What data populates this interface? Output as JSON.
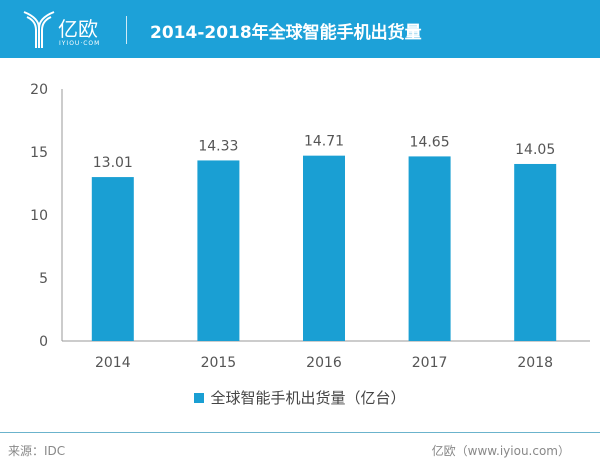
{
  "header": {
    "logo_text": "亿欧",
    "logo_sub": "IYIOU·COM",
    "title": "2014-2018年全球智能手机出货量"
  },
  "chart_data": {
    "type": "bar",
    "title": "2014-2018年全球智能手机出货量",
    "categories": [
      "2014",
      "2015",
      "2016",
      "2017",
      "2018"
    ],
    "series": [
      {
        "name": "全球智能手机出货量（亿台）",
        "values": [
          13.01,
          14.33,
          14.71,
          14.65,
          14.05
        ]
      }
    ],
    "data_labels": [
      "13.01",
      "14.33",
      "14.71",
      "14.65",
      "14.05"
    ],
    "ylim": [
      0,
      20
    ],
    "yticks": [
      "0",
      "5",
      "10",
      "15",
      "20"
    ],
    "grid": false,
    "legend": "bottom",
    "color": "#1a9fd3"
  },
  "footer": {
    "source": "来源：IDC",
    "site": "亿欧（www.iyiou.com）"
  }
}
